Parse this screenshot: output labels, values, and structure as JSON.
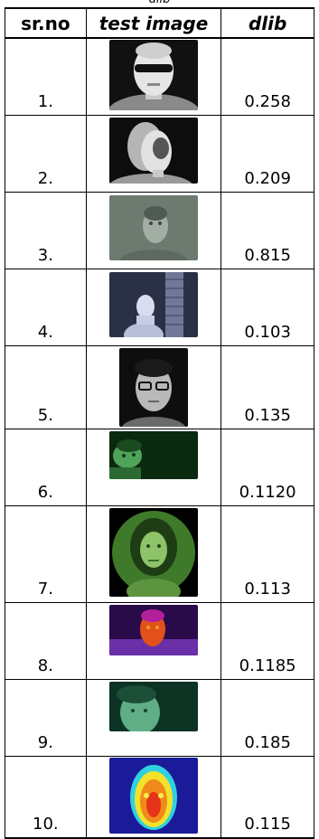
{
  "caption": "dlib",
  "headers": {
    "srno": "sr.no",
    "image": "test image",
    "dlib": "dlib"
  },
  "rows": [
    {
      "srno": "1.",
      "score": "0.258",
      "image": "thermal-face-sunglasses"
    },
    {
      "srno": "2.",
      "score": "0.209",
      "image": "thermal-face-woman"
    },
    {
      "srno": "3.",
      "score": "0.815",
      "image": "night-vision-face-gray"
    },
    {
      "srno": "4.",
      "score": "0.103",
      "image": "night-cctv-person-brick-wall"
    },
    {
      "srno": "5.",
      "score": "0.135",
      "image": "infrared-face-glasses"
    },
    {
      "srno": "6.",
      "score": "0.1120",
      "image": "night-vision-green-face"
    },
    {
      "srno": "7.",
      "score": "0.113",
      "image": "night-vision-scope-woman"
    },
    {
      "srno": "8.",
      "score": "0.1185",
      "image": "thermal-false-color-face"
    },
    {
      "srno": "9.",
      "score": "0.185",
      "image": "night-vision-green-woman"
    },
    {
      "srno": "10.",
      "score": "0.115",
      "image": "thermal-rainbow-face"
    }
  ]
}
